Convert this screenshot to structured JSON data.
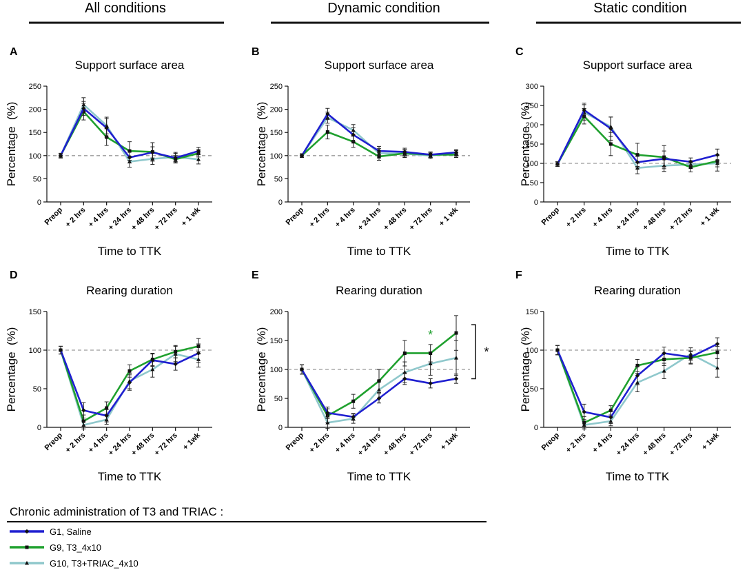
{
  "columns": [
    {
      "title": "All conditions"
    },
    {
      "title": "Dynamic condition"
    },
    {
      "title": "Static condition"
    }
  ],
  "legend": {
    "title": "Chronic administration of T3 and TRIAC :",
    "entries": [
      {
        "label": "G1, Saline",
        "color": "#1f1fd0",
        "marker": "diamond"
      },
      {
        "label": "G9, T3_4x10",
        "color": "#1fa02e",
        "marker": "square"
      },
      {
        "label": "G10, T3+TRIAC_4x10",
        "color": "#8fc8cc",
        "marker": "triangle"
      }
    ]
  },
  "chart_data": [
    {
      "panel": "A",
      "type": "line",
      "title": "Support surface area",
      "xlabel": "Time to TTK",
      "ylabel": "Percentage  (%)",
      "categories": [
        "Preop",
        "+ 2 hrs",
        "+ 4 hrs",
        "+ 24 hrs",
        "+ 48 hrs",
        "+ 72 hrs",
        "+ 1 wk"
      ],
      "ylim": [
        0,
        250
      ],
      "yticks": [
        0,
        50,
        100,
        150,
        200,
        250
      ],
      "reference": 100,
      "series": [
        {
          "name": "G1, Saline",
          "values": [
            100,
            202,
            160,
            96,
            107,
            95,
            110
          ],
          "errors": [
            5,
            15,
            20,
            12,
            12,
            10,
            8
          ]
        },
        {
          "name": "G9, T3_4x10",
          "values": [
            100,
            195,
            140,
            110,
            108,
            92,
            105
          ],
          "errors": [
            5,
            18,
            18,
            20,
            20,
            8,
            8
          ]
        },
        {
          "name": "G10, T3+TRIAC_4x10",
          "values": [
            100,
            210,
            165,
            87,
            93,
            97,
            92
          ],
          "errors": [
            5,
            15,
            18,
            12,
            12,
            10,
            10
          ]
        }
      ]
    },
    {
      "panel": "B",
      "type": "line",
      "title": "Support surface area",
      "xlabel": "Time to TTK",
      "ylabel": "Percentage  (%)",
      "categories": [
        "Preop",
        "+ 2 hrs",
        "+ 4 hrs",
        "+ 24 hrs",
        "+ 48 hrs",
        "+ 72 hrs",
        "+ 1 wk"
      ],
      "ylim": [
        0,
        250
      ],
      "yticks": [
        0,
        50,
        100,
        150,
        200,
        250
      ],
      "reference": 100,
      "series": [
        {
          "name": "G1, Saline",
          "values": [
            100,
            190,
            145,
            110,
            108,
            102,
            107
          ],
          "errors": [
            4,
            12,
            15,
            10,
            8,
            6,
            6
          ]
        },
        {
          "name": "G9, T3_4x10",
          "values": [
            100,
            151,
            130,
            98,
            105,
            102,
            102
          ],
          "errors": [
            4,
            15,
            12,
            8,
            8,
            6,
            6
          ]
        },
        {
          "name": "G10, T3+TRIAC_4x10",
          "values": [
            100,
            182,
            155,
            105,
            104,
            100,
            105
          ],
          "errors": [
            4,
            12,
            12,
            10,
            8,
            6,
            6
          ]
        }
      ]
    },
    {
      "panel": "C",
      "type": "line",
      "title": "Support surface area",
      "xlabel": "Time to TTK",
      "ylabel": "Percentage  (%)",
      "categories": [
        "Preop",
        "+ 2 hrs",
        "+ 4 hrs",
        "+ 24 hrs",
        "+ 48 hrs",
        "+ 72 hrs",
        "+ 1 wk"
      ],
      "ylim": [
        0,
        300
      ],
      "yticks": [
        0,
        50,
        100,
        150,
        200,
        250,
        300
      ],
      "reference": 100,
      "series": [
        {
          "name": "G1, Saline",
          "values": [
            98,
            238,
            190,
            103,
            112,
            104,
            122
          ],
          "errors": [
            6,
            18,
            30,
            15,
            20,
            10,
            15
          ]
        },
        {
          "name": "G9, T3_4x10",
          "values": [
            98,
            222,
            150,
            122,
            116,
            90,
            106
          ],
          "errors": [
            6,
            20,
            30,
            30,
            30,
            12,
            15
          ]
        },
        {
          "name": "G10, T3+TRIAC_4x10",
          "values": [
            98,
            232,
            195,
            88,
            94,
            97,
            100
          ],
          "errors": [
            6,
            20,
            25,
            15,
            15,
            10,
            20
          ]
        }
      ]
    },
    {
      "panel": "D",
      "type": "line",
      "title": "Rearing duration",
      "xlabel": "Time to TTK",
      "ylabel": "Percentage  (%)",
      "categories": [
        "Preop",
        "+ 2 hrs",
        "+ 4 hrs",
        "+ 24 hrs",
        "+ 48 hrs",
        "+ 72 hrs",
        "+ 1wk"
      ],
      "ylim": [
        0,
        150
      ],
      "yticks": [
        0,
        50,
        100,
        150
      ],
      "reference": 100,
      "series": [
        {
          "name": "G1, Saline",
          "values": [
            100,
            22,
            15,
            58,
            87,
            82,
            96
          ],
          "errors": [
            5,
            10,
            8,
            10,
            8,
            8,
            12
          ]
        },
        {
          "name": "G9, T3_4x10",
          "values": [
            100,
            8,
            25,
            73,
            88,
            98,
            105
          ],
          "errors": [
            5,
            8,
            8,
            8,
            8,
            8,
            10
          ]
        },
        {
          "name": "G10, T3+TRIAC_4x10",
          "values": [
            100,
            3,
            10,
            60,
            75,
            95,
            88
          ],
          "errors": [
            5,
            5,
            6,
            10,
            10,
            10,
            10
          ]
        }
      ]
    },
    {
      "panel": "E",
      "type": "line",
      "title": "Rearing duration",
      "xlabel": "Time to TTK",
      "ylabel": "Percentage  (%)",
      "categories": [
        "Preop",
        "+ 2 hrs",
        "+ 4 hrs",
        "+ 24 hrs",
        "+ 48 hrs",
        "+ 72 hrs",
        "+ 1wk"
      ],
      "ylim": [
        0,
        200
      ],
      "yticks": [
        0,
        50,
        100,
        150,
        200
      ],
      "reference": 100,
      "annotations": [
        {
          "text": "*",
          "at": "+ 72 hrs",
          "series": "G9, T3_4x10"
        }
      ],
      "significance_bracket": {
        "text": "*",
        "span": [
          84,
          163
        ]
      },
      "series": [
        {
          "name": "G1, Saline",
          "values": [
            100,
            25,
            18,
            50,
            84,
            76,
            84
          ],
          "errors": [
            8,
            10,
            6,
            8,
            10,
            8,
            8
          ]
        },
        {
          "name": "G9, T3_4x10",
          "values": [
            100,
            20,
            45,
            80,
            128,
            128,
            163
          ],
          "errors": [
            8,
            12,
            12,
            20,
            22,
            15,
            30
          ]
        },
        {
          "name": "G10, T3+TRIAC_4x10",
          "values": [
            100,
            8,
            15,
            65,
            95,
            110,
            120
          ],
          "errors": [
            8,
            10,
            8,
            15,
            18,
            20,
            30
          ]
        }
      ]
    },
    {
      "panel": "F",
      "type": "line",
      "title": "Rearing duration",
      "xlabel": "Time to TTK",
      "ylabel": "Percentage  (%)",
      "categories": [
        "Preop",
        "+ 2 hrs",
        "+ 4 hrs",
        "+ 24 hrs",
        "+ 48 hrs",
        "+ 72 hrs",
        "+ 1wk"
      ],
      "ylim": [
        0,
        150
      ],
      "yticks": [
        0,
        50,
        100,
        150
      ],
      "reference": 100,
      "series": [
        {
          "name": "G1, Saline",
          "values": [
            100,
            20,
            13,
            67,
            96,
            91,
            108
          ],
          "errors": [
            6,
            10,
            8,
            12,
            8,
            8,
            8
          ]
        },
        {
          "name": "G9, T3_4x10",
          "values": [
            100,
            6,
            22,
            80,
            88,
            90,
            97
          ],
          "errors": [
            6,
            8,
            6,
            8,
            8,
            8,
            8
          ]
        },
        {
          "name": "G10, T3+TRIAC_4x10",
          "values": [
            100,
            3,
            8,
            58,
            73,
            95,
            77
          ],
          "errors": [
            6,
            5,
            6,
            12,
            10,
            8,
            12
          ]
        }
      ]
    }
  ]
}
